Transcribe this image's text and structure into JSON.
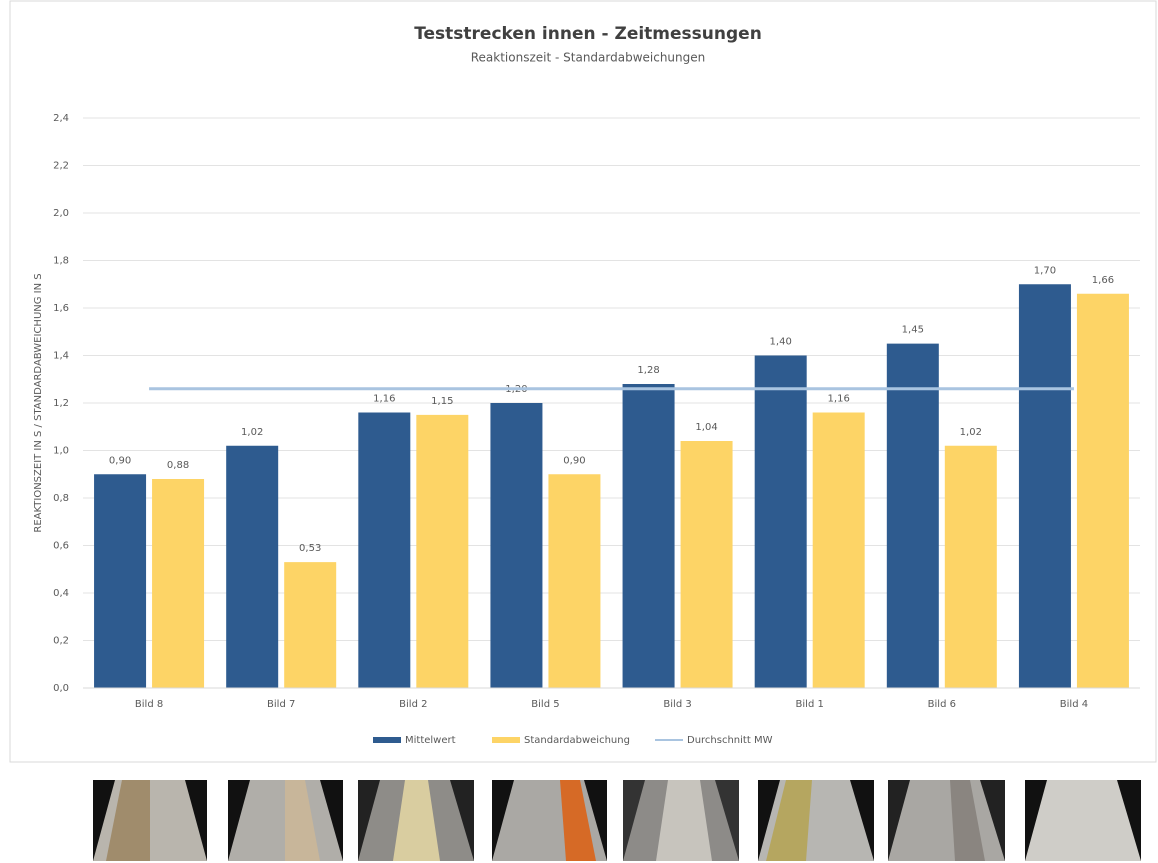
{
  "chart_data": {
    "type": "bar",
    "title": "Teststrecken innen - Zeitmessungen",
    "subtitle": "Reaktionszeit - Standardabweichungen",
    "y_label": "REAKTIONSZEIT IN S / STANDARDABWEICHUNG IN S",
    "categories": [
      "Bild 8",
      "Bild 7",
      "Bild 2",
      "Bild 5",
      "Bild 3",
      "Bild 1",
      "Bild 6",
      "Bild 4"
    ],
    "series": [
      {
        "name": "Mittelwert",
        "color": "#2e5b8f",
        "values": [
          0.9,
          1.02,
          1.16,
          1.2,
          1.28,
          1.4,
          1.45,
          1.7
        ],
        "value_labels": [
          "0,90",
          "1,02",
          "1,16",
          "1,20",
          "1,28",
          "1,40",
          "1,45",
          "1,70"
        ]
      },
      {
        "name": "Standardabweichung",
        "color": "#fdd466",
        "values": [
          0.88,
          0.53,
          1.15,
          0.9,
          1.04,
          1.16,
          1.02,
          1.66
        ],
        "value_labels": [
          "0,88",
          "0,53",
          "1,15",
          "0,90",
          "1,04",
          "1,16",
          "1,02",
          "1,66"
        ]
      }
    ],
    "reference_line": {
      "name": "Durchschnitt MW",
      "value": 1.26,
      "color": "#a9c4e0"
    },
    "ylim": [
      0,
      2.4
    ],
    "yticks": [
      {
        "value": 0,
        "label": "0,0"
      },
      {
        "value": 0.2,
        "label": "0,2"
      },
      {
        "value": 0.4,
        "label": "0,4"
      },
      {
        "value": 0.6,
        "label": "0,6"
      },
      {
        "value": 0.8,
        "label": "0,8"
      },
      {
        "value": 1.0,
        "label": "1,0"
      },
      {
        "value": 1.2,
        "label": "1,2"
      },
      {
        "value": 1.4,
        "label": "1,4"
      },
      {
        "value": 1.6,
        "label": "1,6"
      },
      {
        "value": 1.8,
        "label": "1,8"
      },
      {
        "value": 2.0,
        "label": "2,0"
      },
      {
        "value": 2.2,
        "label": "2,2"
      },
      {
        "value": 2.4,
        "label": "2,4"
      }
    ],
    "grid": true
  }
}
